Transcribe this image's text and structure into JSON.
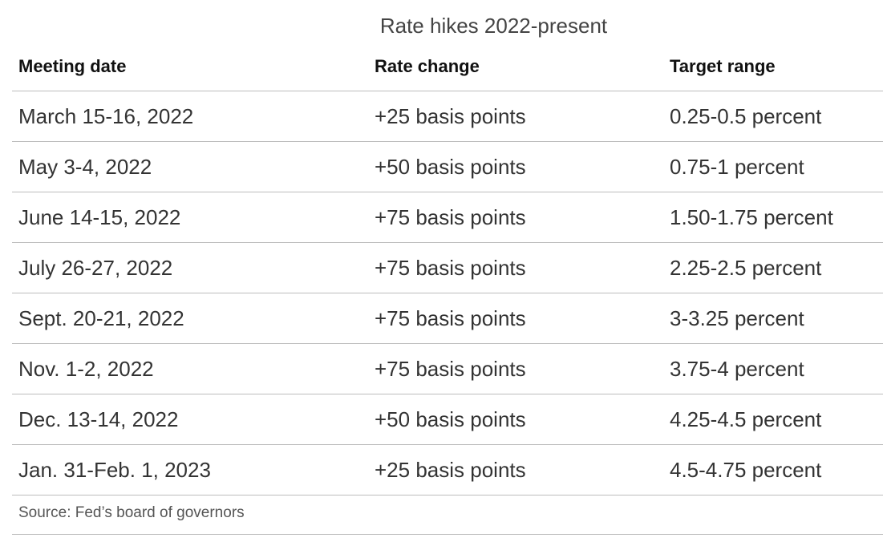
{
  "chart_data": {
    "type": "table",
    "title": "Rate hikes 2022-present",
    "columns": [
      "Meeting date",
      "Rate change",
      "Target range"
    ],
    "rows": [
      [
        "March 15-16, 2022",
        "+25 basis points",
        "0.25-0.5 percent"
      ],
      [
        "May 3-4, 2022",
        "+50 basis points",
        "0.75-1 percent"
      ],
      [
        "June 14-15, 2022",
        "+75 basis points",
        "1.50-1.75 percent"
      ],
      [
        "July 26-27, 2022",
        "+75 basis points",
        "2.25-2.5 percent"
      ],
      [
        "Sept. 20-21, 2022",
        "+75 basis points",
        "3-3.25 percent"
      ],
      [
        "Nov. 1-2, 2022",
        "+75 basis points",
        "3.75-4 percent"
      ],
      [
        "Dec. 13-14, 2022",
        "+50 basis points",
        "4.25-4.5 percent"
      ],
      [
        "Jan. 31-Feb. 1, 2023",
        "+25 basis points",
        "4.5-4.75 percent"
      ]
    ],
    "source": "Source: Fed’s board of governors"
  }
}
